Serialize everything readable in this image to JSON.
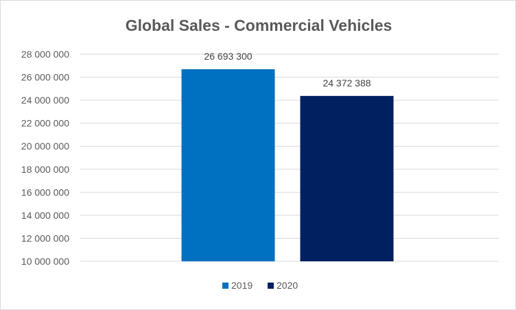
{
  "chart_data": {
    "type": "bar",
    "title": "Global Sales - Commercial Vehicles",
    "xlabel": "",
    "ylabel": "",
    "ylim": [
      10000000,
      28000000
    ],
    "ytick_step": 2000000,
    "yticks": [
      "10 000 000",
      "12 000 000",
      "14 000 000",
      "16 000 000",
      "18 000 000",
      "20 000 000",
      "22 000 000",
      "24 000 000",
      "26 000 000",
      "28 000 000"
    ],
    "grid": true,
    "legend_position": "bottom",
    "series": [
      {
        "name": "2019",
        "value": 26693300,
        "label": "26 693 300",
        "color": "#0070C0"
      },
      {
        "name": "2020",
        "value": 24372388,
        "label": "24 372 388",
        "color": "#002060"
      }
    ]
  }
}
